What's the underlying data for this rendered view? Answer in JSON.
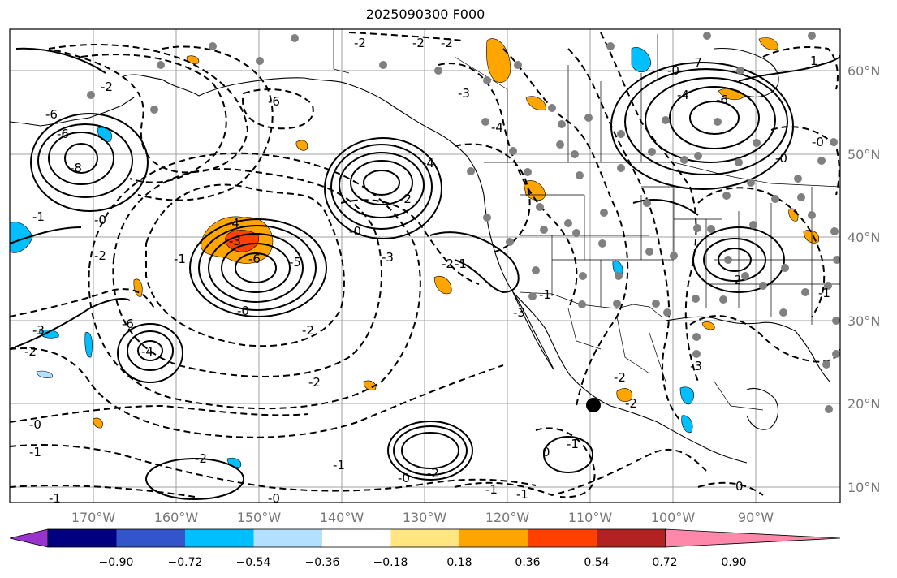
{
  "title": "2025090300 F000",
  "axes": {
    "lon_ticks": [
      "170°W",
      "160°W",
      "150°W",
      "140°W",
      "130°W",
      "120°W",
      "110°W",
      "100°W",
      "90°W"
    ],
    "lat_ticks": [
      "60°N",
      "50°N",
      "40°N",
      "30°N",
      "20°N",
      "10°N"
    ]
  },
  "colorbar": {
    "extend": "both",
    "colors": [
      "#9933cc",
      "#000080",
      "#3355cc",
      "#00bfff",
      "#b3e0ff",
      "#ffffff",
      "#ffe680",
      "#ffa500",
      "#ff4000",
      "#b22222",
      "#ff88aa"
    ],
    "tick_labels": [
      "−0.90",
      "−0.72",
      "−0.54",
      "−0.36",
      "−0.18",
      "0.18",
      "0.36",
      "0.54",
      "0.72",
      "0.90"
    ]
  },
  "contour_labels": [
    "-2",
    "-2",
    "-2",
    "-2",
    "-3",
    "-4",
    "-6",
    "-7",
    "-4",
    "-6",
    "-8",
    "-1",
    "-0",
    "-1",
    "-2",
    "-3",
    "-6",
    "-5",
    "-4",
    "-2",
    "-6",
    "-6",
    "-4",
    "-0",
    "-3",
    "-1",
    "-0",
    "-2",
    "-4",
    "-6",
    "-2",
    "-3",
    "-2",
    "-1",
    "-0",
    "-1",
    "-2",
    "-0",
    "-1",
    "-0",
    "-2",
    "-1",
    "-2",
    "-3",
    "-1",
    "0",
    "-1",
    "-2",
    "-2",
    "-3",
    "-0",
    "-0",
    "1",
    "-0",
    "-1",
    "2",
    "0",
    "-1"
  ],
  "markers": {
    "center_dot": "black dot",
    "station_dots": "grey dots"
  }
}
